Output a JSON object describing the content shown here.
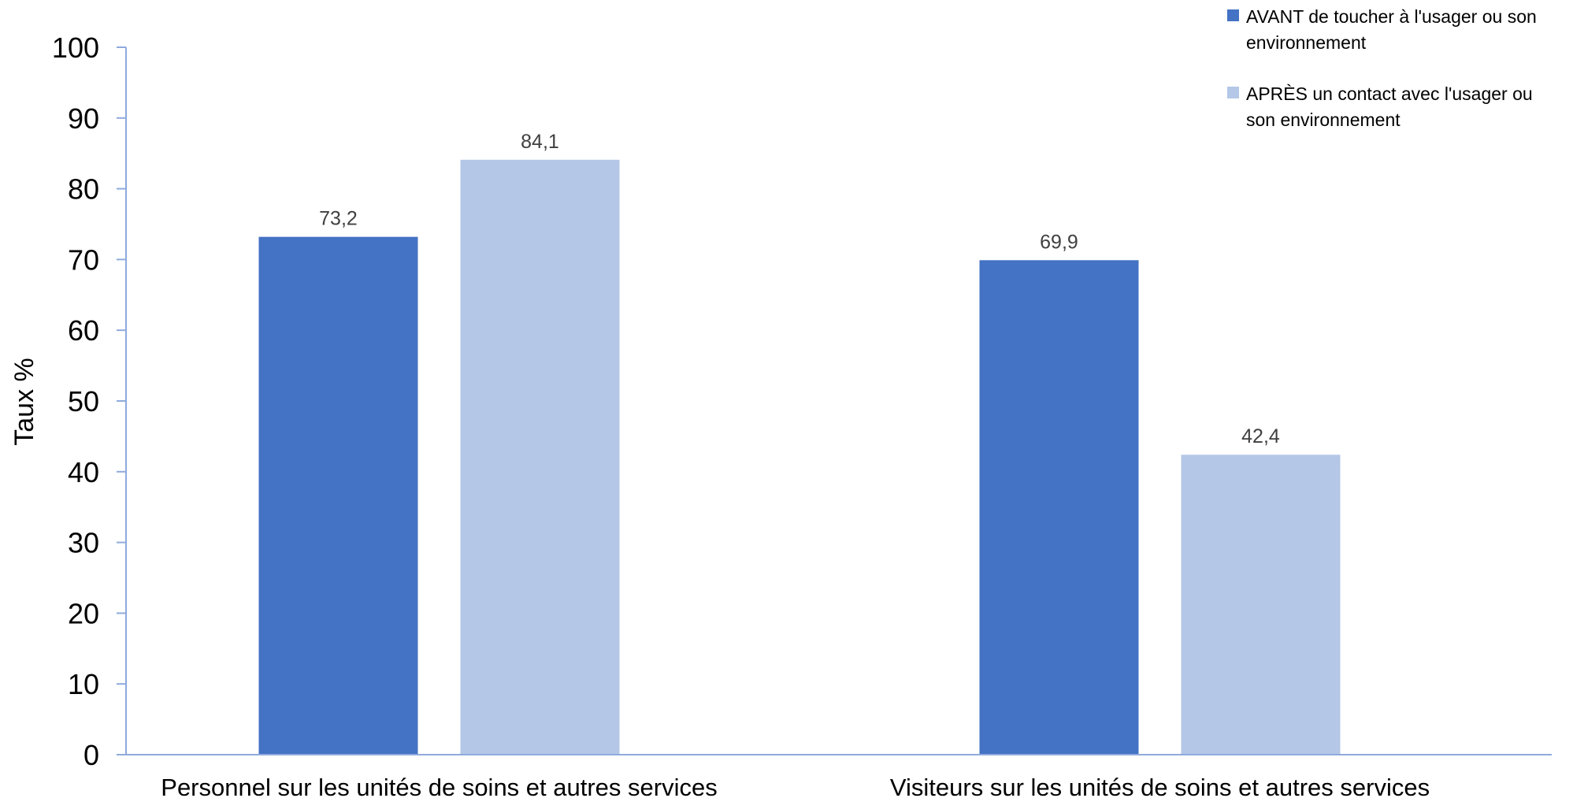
{
  "chart_data": {
    "type": "bar",
    "title": "",
    "xlabel": "",
    "ylabel": "Taux %",
    "ylim": [
      0,
      100
    ],
    "yticks": [
      "0",
      "10",
      "20",
      "30",
      "40",
      "50",
      "60",
      "70",
      "80",
      "90",
      "100"
    ],
    "grid": false,
    "legend_position": "top-right",
    "categories": [
      "Personnel sur les unités de soins et autres services",
      "Visiteurs sur les unités de soins et autres services"
    ],
    "series": [
      {
        "name": "AVANT de toucher à l'usager ou son environnement",
        "legend_lines": [
          "AVANT de toucher à l'usager ou son",
          "environnement"
        ],
        "color": "#4472C4",
        "values": [
          73.2,
          69.9
        ],
        "labels": [
          "73,2",
          "69,9"
        ]
      },
      {
        "name": "APRÈS un contact avec l'usager ou son environnement",
        "legend_lines": [
          "APRÈS un contact avec l'usager ou",
          "son environnement"
        ],
        "color": "#B4C7E7",
        "values": [
          84.1,
          42.4
        ],
        "labels": [
          "84,1",
          "42,4"
        ]
      }
    ],
    "axis_color": "#8FAADC"
  }
}
